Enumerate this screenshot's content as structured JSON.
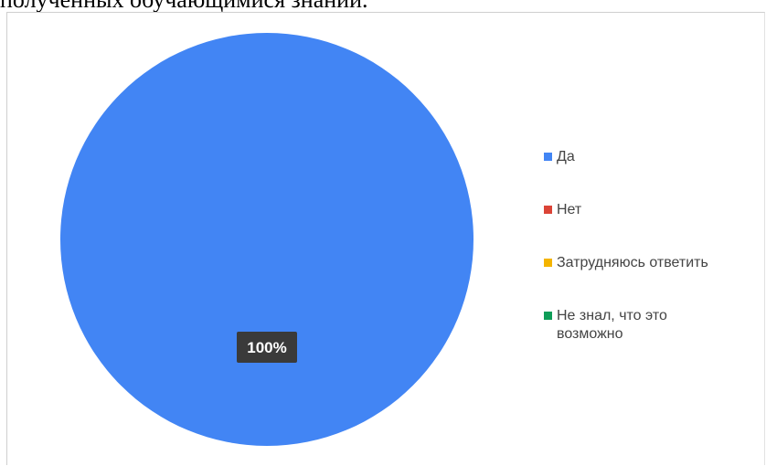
{
  "page": {
    "top_text": "полученных обучающимися знаний."
  },
  "colors": {
    "Да": "#4285f4",
    "Нет": "#db4437",
    "Затрудняюсь ответить": "#f4b400",
    "Не знал, что это возможно": "#0f9d58"
  },
  "chart_data": {
    "type": "pie",
    "title": "",
    "categories": [
      "Да",
      "Нет",
      "Затрудняюсь ответить",
      "Не знал, что это возможно"
    ],
    "values": [
      100,
      0,
      0,
      0
    ],
    "unit": "%",
    "data_labels": [
      "100%"
    ],
    "legend_position": "right",
    "legend": [
      {
        "label": "Да",
        "color": "#4285f4"
      },
      {
        "label": "Нет",
        "color": "#db4437"
      },
      {
        "label": "Затрудняюсь ответить",
        "color": "#f4b400"
      },
      {
        "label": "Не знал, что это возможно",
        "color": "#0f9d58"
      }
    ]
  }
}
